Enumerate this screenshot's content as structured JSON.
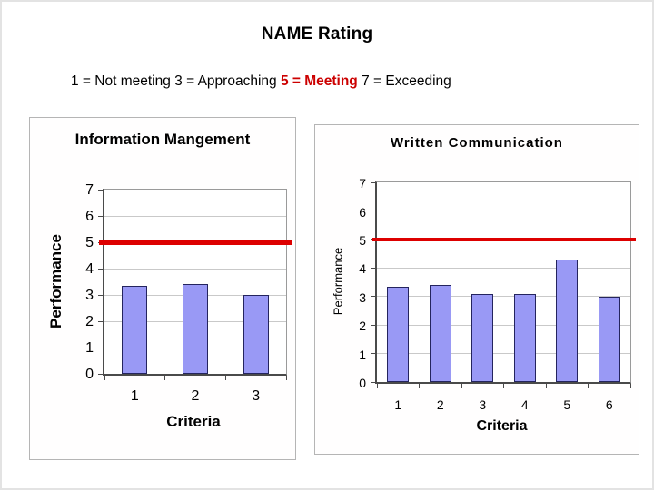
{
  "page": {
    "title": "NAME Rating",
    "legend_parts": [
      {
        "text": "1 = Not meeting 3 = Approaching ",
        "color": "#000000",
        "bold": false
      },
      {
        "text": "5 = Meeting",
        "color": "#cc0000",
        "bold": true
      },
      {
        "text": " 7 = Exceeding",
        "color": "#000000",
        "bold": false
      }
    ]
  },
  "colors": {
    "bar_fill": "#9999f5",
    "bar_border": "#24245e",
    "reference_line": "#dd0000",
    "legend_highlight": "#cc0000",
    "gridline": "#c9c9c9",
    "axis_text": "#000000"
  },
  "chart_data": [
    {
      "type": "bar",
      "title": "Information Mangement",
      "xlabel": "Criteria",
      "ylabel": "Performance",
      "categories": [
        "1",
        "2",
        "3"
      ],
      "values": [
        3.35,
        3.4,
        3.0
      ],
      "ylim": [
        0,
        7
      ],
      "yticks": [
        0,
        1,
        2,
        3,
        4,
        5,
        6,
        7
      ],
      "grid": true,
      "legend_position": "none",
      "reference_line": {
        "value": 5
      }
    },
    {
      "type": "bar",
      "title": "Written Communication",
      "xlabel": "Criteria",
      "ylabel": "Performance",
      "categories": [
        "1",
        "2",
        "3",
        "4",
        "5",
        "6"
      ],
      "values": [
        3.35,
        3.4,
        3.1,
        3.1,
        4.3,
        3.0
      ],
      "ylim": [
        0,
        7
      ],
      "yticks": [
        0,
        1,
        2,
        3,
        4,
        5,
        6,
        7
      ],
      "grid": true,
      "legend_position": "none",
      "reference_line": {
        "value": 5
      }
    }
  ]
}
